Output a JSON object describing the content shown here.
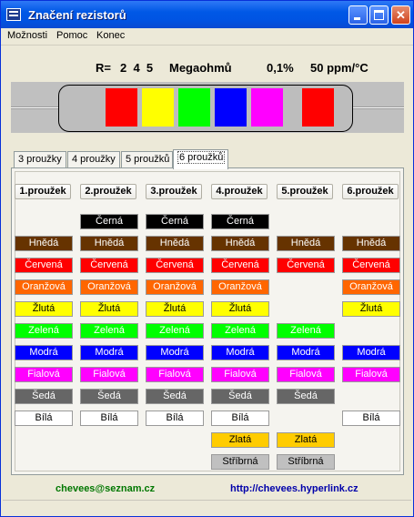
{
  "window": {
    "title": "Značení rezistorů"
  },
  "menu": [
    "Možnosti",
    "Pomoc",
    "Konec"
  ],
  "spec": {
    "prefix": "R=",
    "digits": "2  4  5",
    "unit": "Megaohmů",
    "tolerance": "0,1%",
    "tempco": "50 ppm/°C"
  },
  "resistor": {
    "bands": [
      "#ff0000",
      "#ffff00",
      "#00ff00",
      "#0000ff",
      "#ff00ff",
      "#ff0000"
    ],
    "body_color": "#bdbdbd"
  },
  "tabs": [
    "3 proužky",
    "4 proužky",
    "5 proužků",
    "6 proužků"
  ],
  "active_tab": 3,
  "columns": [
    "1.proužek",
    "2.proužek",
    "3.proužek",
    "4.proužek",
    "5.proužek",
    "6.proužek"
  ],
  "colors": {
    "cerna": {
      "label": "Černá",
      "bg": "#000000",
      "fg": "#ffffff"
    },
    "hneda": {
      "label": "Hnědá",
      "bg": "#663300",
      "fg": "#ffffff"
    },
    "cervena": {
      "label": "Červená",
      "bg": "#ff0000",
      "fg": "#ffffff"
    },
    "oranzova": {
      "label": "Oranžová",
      "bg": "#ff6600",
      "fg": "#ffffff"
    },
    "zluta": {
      "label": "Žlutá",
      "bg": "#ffff00",
      "fg": "#000000"
    },
    "zelena": {
      "label": "Zelená",
      "bg": "#00ff00",
      "fg": "#ffffff"
    },
    "modra": {
      "label": "Modrá",
      "bg": "#0000ff",
      "fg": "#ffffff"
    },
    "fialova": {
      "label": "Fialová",
      "bg": "#ff00ff",
      "fg": "#ffffff"
    },
    "seda": {
      "label": "Šedá",
      "bg": "#666666",
      "fg": "#ffffff"
    },
    "bila": {
      "label": "Bílá",
      "bg": "#ffffff",
      "fg": "#000000"
    },
    "zlata": {
      "label": "Zlatá",
      "bg": "#ffcc00",
      "fg": "#000000"
    },
    "stribrna": {
      "label": "Stříbrná",
      "bg": "#c0c0c0",
      "fg": "#000000"
    }
  },
  "column_colors": [
    [
      "hneda",
      "cervena",
      "oranzova",
      "zluta",
      "zelena",
      "modra",
      "fialova",
      "seda",
      "bila"
    ],
    [
      "cerna",
      "hneda",
      "cervena",
      "oranzova",
      "zluta",
      "zelena",
      "modra",
      "fialova",
      "seda",
      "bila"
    ],
    [
      "cerna",
      "hneda",
      "cervena",
      "oranzova",
      "zluta",
      "zelena",
      "modra",
      "fialova",
      "seda",
      "bila"
    ],
    [
      "cerna",
      "hneda",
      "cervena",
      "oranzova",
      "zluta",
      "zelena",
      "modra",
      "fialova",
      "seda",
      "bila",
      "zlata",
      "stribrna"
    ],
    [
      "hneda",
      "cervena",
      "zelena",
      "modra",
      "fialova",
      "seda",
      "zlata",
      "stribrna"
    ],
    [
      "hneda",
      "cervena",
      "oranzova",
      "zluta",
      "modra",
      "fialova",
      "bila"
    ]
  ],
  "footer": {
    "email": "chevees@seznam.cz",
    "email_color": "#007700",
    "url": "http://chevees.hyperlink.cz",
    "url_color": "#0000aa"
  }
}
